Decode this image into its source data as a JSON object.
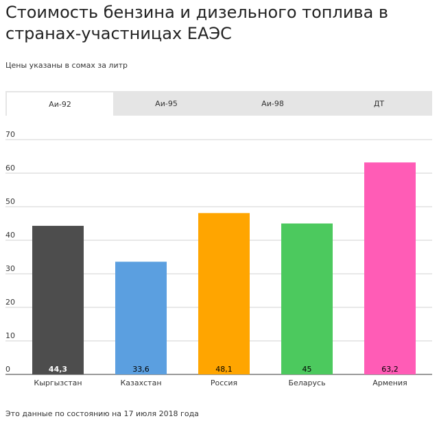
{
  "title": "Стоимость бензина и дизельного топлива в странах-участницах ЕАЭС",
  "subtitle": "Цены указаны в сомах за литр",
  "tabs": [
    {
      "label": "Аи-92",
      "active": true
    },
    {
      "label": "Аи-95",
      "active": false
    },
    {
      "label": "Аи-98",
      "active": false
    },
    {
      "label": "ДТ",
      "active": false
    }
  ],
  "footnote": "Это данные по состоянию на 17 июля 2018 года",
  "chart_data": {
    "type": "bar",
    "categories": [
      "Кыргызстан",
      "Казахстан",
      "Россия",
      "Беларусь",
      "Армения"
    ],
    "values": [
      44.3,
      33.6,
      48.1,
      45,
      63.2
    ],
    "value_labels": [
      "44,3",
      "33,6",
      "48,1",
      "45",
      "63,2"
    ],
    "colors": [
      "#4d4d4d",
      "#5b9fe0",
      "#ffa500",
      "#4cc95e",
      "#ff5cb6"
    ],
    "label_colors": [
      "#ffffff",
      "#000000",
      "#000000",
      "#000000",
      "#000000"
    ],
    "yticks": [
      "0",
      "10",
      "20",
      "30",
      "40",
      "50",
      "60",
      "70"
    ],
    "ylim": [
      0,
      70
    ],
    "grid": true
  }
}
